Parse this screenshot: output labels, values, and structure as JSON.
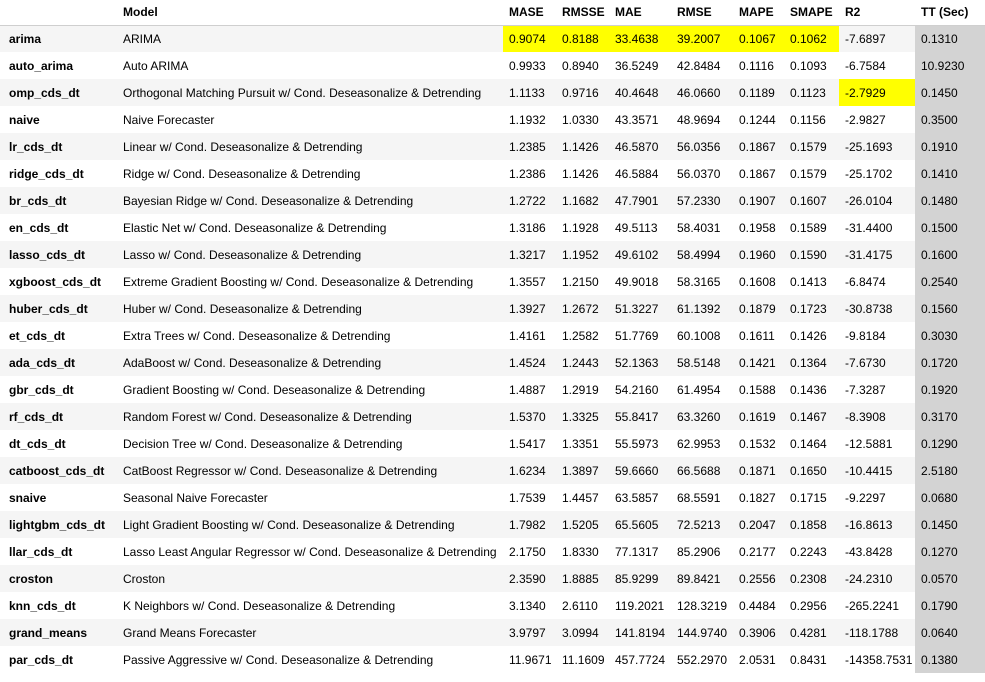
{
  "table": {
    "columns": [
      "",
      "Model",
      "MASE",
      "RMSSE",
      "MAE",
      "RMSE",
      "MAPE",
      "SMAPE",
      "R2",
      "TT (Sec)"
    ],
    "highlight_color": "#ffff00",
    "tt_column_color": "#d3d3d3",
    "rows": [
      {
        "id": "arima",
        "cells": [
          "ARIMA",
          "0.9074",
          "0.8188",
          "33.4638",
          "39.2007",
          "0.1067",
          "0.1062",
          "-7.6897",
          "0.1310"
        ],
        "highlighted": [
          1,
          2,
          3,
          4,
          5,
          6
        ]
      },
      {
        "id": "auto_arima",
        "cells": [
          "Auto ARIMA",
          "0.9933",
          "0.8940",
          "36.5249",
          "42.8484",
          "0.1116",
          "0.1093",
          "-6.7584",
          "10.9230"
        ],
        "highlighted": []
      },
      {
        "id": "omp_cds_dt",
        "cells": [
          "Orthogonal Matching Pursuit w/ Cond. Deseasonalize & Detrending",
          "1.1133",
          "0.9716",
          "40.4648",
          "46.0660",
          "0.1189",
          "0.1123",
          "-2.7929",
          "0.1450"
        ],
        "highlighted": [
          7
        ]
      },
      {
        "id": "naive",
        "cells": [
          "Naive Forecaster",
          "1.1932",
          "1.0330",
          "43.3571",
          "48.9694",
          "0.1244",
          "0.1156",
          "-2.9827",
          "0.3500"
        ],
        "highlighted": []
      },
      {
        "id": "lr_cds_dt",
        "cells": [
          "Linear w/ Cond. Deseasonalize & Detrending",
          "1.2385",
          "1.1426",
          "46.5870",
          "56.0356",
          "0.1867",
          "0.1579",
          "-25.1693",
          "0.1910"
        ],
        "highlighted": []
      },
      {
        "id": "ridge_cds_dt",
        "cells": [
          "Ridge w/ Cond. Deseasonalize & Detrending",
          "1.2386",
          "1.1426",
          "46.5884",
          "56.0370",
          "0.1867",
          "0.1579",
          "-25.1702",
          "0.1410"
        ],
        "highlighted": []
      },
      {
        "id": "br_cds_dt",
        "cells": [
          "Bayesian Ridge w/ Cond. Deseasonalize & Detrending",
          "1.2722",
          "1.1682",
          "47.7901",
          "57.2330",
          "0.1907",
          "0.1607",
          "-26.0104",
          "0.1480"
        ],
        "highlighted": []
      },
      {
        "id": "en_cds_dt",
        "cells": [
          "Elastic Net w/ Cond. Deseasonalize & Detrending",
          "1.3186",
          "1.1928",
          "49.5113",
          "58.4031",
          "0.1958",
          "0.1589",
          "-31.4400",
          "0.1500"
        ],
        "highlighted": []
      },
      {
        "id": "lasso_cds_dt",
        "cells": [
          "Lasso w/ Cond. Deseasonalize & Detrending",
          "1.3217",
          "1.1952",
          "49.6102",
          "58.4994",
          "0.1960",
          "0.1590",
          "-31.4175",
          "0.1600"
        ],
        "highlighted": []
      },
      {
        "id": "xgboost_cds_dt",
        "cells": [
          "Extreme Gradient Boosting w/ Cond. Deseasonalize & Detrending",
          "1.3557",
          "1.2150",
          "49.9018",
          "58.3165",
          "0.1608",
          "0.1413",
          "-6.8474",
          "0.2540"
        ],
        "highlighted": []
      },
      {
        "id": "huber_cds_dt",
        "cells": [
          "Huber w/ Cond. Deseasonalize & Detrending",
          "1.3927",
          "1.2672",
          "51.3227",
          "61.1392",
          "0.1879",
          "0.1723",
          "-30.8738",
          "0.1560"
        ],
        "highlighted": []
      },
      {
        "id": "et_cds_dt",
        "cells": [
          "Extra Trees w/ Cond. Deseasonalize & Detrending",
          "1.4161",
          "1.2582",
          "51.7769",
          "60.1008",
          "0.1611",
          "0.1426",
          "-9.8184",
          "0.3030"
        ],
        "highlighted": []
      },
      {
        "id": "ada_cds_dt",
        "cells": [
          "AdaBoost w/ Cond. Deseasonalize & Detrending",
          "1.4524",
          "1.2443",
          "52.1363",
          "58.5148",
          "0.1421",
          "0.1364",
          "-7.6730",
          "0.1720"
        ],
        "highlighted": []
      },
      {
        "id": "gbr_cds_dt",
        "cells": [
          "Gradient Boosting w/ Cond. Deseasonalize & Detrending",
          "1.4887",
          "1.2919",
          "54.2160",
          "61.4954",
          "0.1588",
          "0.1436",
          "-7.3287",
          "0.1920"
        ],
        "highlighted": []
      },
      {
        "id": "rf_cds_dt",
        "cells": [
          "Random Forest w/ Cond. Deseasonalize & Detrending",
          "1.5370",
          "1.3325",
          "55.8417",
          "63.3260",
          "0.1619",
          "0.1467",
          "-8.3908",
          "0.3170"
        ],
        "highlighted": []
      },
      {
        "id": "dt_cds_dt",
        "cells": [
          "Decision Tree w/ Cond. Deseasonalize & Detrending",
          "1.5417",
          "1.3351",
          "55.5973",
          "62.9953",
          "0.1532",
          "0.1464",
          "-12.5881",
          "0.1290"
        ],
        "highlighted": []
      },
      {
        "id": "catboost_cds_dt",
        "cells": [
          "CatBoost Regressor w/ Cond. Deseasonalize & Detrending",
          "1.6234",
          "1.3897",
          "59.6660",
          "66.5688",
          "0.1871",
          "0.1650",
          "-10.4415",
          "2.5180"
        ],
        "highlighted": []
      },
      {
        "id": "snaive",
        "cells": [
          "Seasonal Naive Forecaster",
          "1.7539",
          "1.4457",
          "63.5857",
          "68.5591",
          "0.1827",
          "0.1715",
          "-9.2297",
          "0.0680"
        ],
        "highlighted": []
      },
      {
        "id": "lightgbm_cds_dt",
        "cells": [
          "Light Gradient Boosting w/ Cond. Deseasonalize & Detrending",
          "1.7982",
          "1.5205",
          "65.5605",
          "72.5213",
          "0.2047",
          "0.1858",
          "-16.8613",
          "0.1450"
        ],
        "highlighted": []
      },
      {
        "id": "llar_cds_dt",
        "cells": [
          "Lasso Least Angular Regressor w/ Cond. Deseasonalize & Detrending",
          "2.1750",
          "1.8330",
          "77.1317",
          "85.2906",
          "0.2177",
          "0.2243",
          "-43.8428",
          "0.1270"
        ],
        "highlighted": []
      },
      {
        "id": "croston",
        "cells": [
          "Croston",
          "2.3590",
          "1.8885",
          "85.9299",
          "89.8421",
          "0.2556",
          "0.2308",
          "-24.2310",
          "0.0570"
        ],
        "highlighted": []
      },
      {
        "id": "knn_cds_dt",
        "cells": [
          "K Neighbors w/ Cond. Deseasonalize & Detrending",
          "3.1340",
          "2.6110",
          "119.2021",
          "128.3219",
          "0.4484",
          "0.2956",
          "-265.2241",
          "0.1790"
        ],
        "highlighted": []
      },
      {
        "id": "grand_means",
        "cells": [
          "Grand Means Forecaster",
          "3.9797",
          "3.0994",
          "141.8194",
          "144.9740",
          "0.3906",
          "0.4281",
          "-118.1788",
          "0.0640"
        ],
        "highlighted": []
      },
      {
        "id": "par_cds_dt",
        "cells": [
          "Passive Aggressive w/ Cond. Deseasonalize & Detrending",
          "11.9671",
          "11.1609",
          "457.7724",
          "552.2970",
          "2.0531",
          "0.8431",
          "-14358.7531",
          "0.1380"
        ],
        "highlighted": []
      }
    ]
  }
}
